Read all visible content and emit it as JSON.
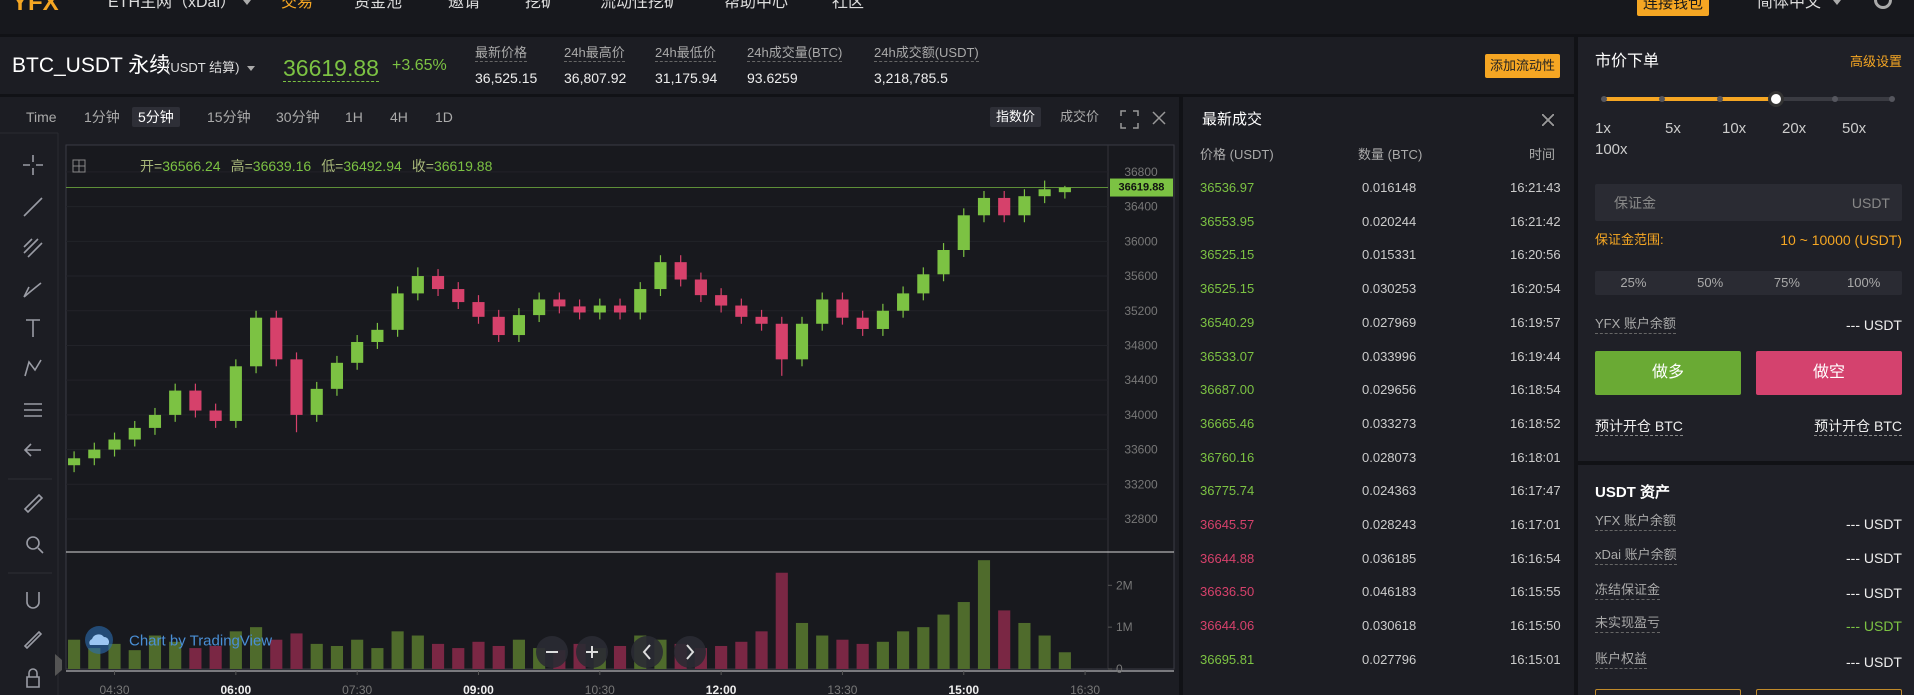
{
  "nav": {
    "logo": "YFX",
    "network": "ETH主网（xDai）",
    "items": [
      "交易",
      "资金池",
      "邀请",
      "挖矿",
      "流动性挖矿",
      "帮助中心",
      "社区"
    ],
    "active": 0,
    "connect_wallet": "连接钱包",
    "language": "简体中文"
  },
  "ticker": {
    "symbol": "BTC_USDT 永续",
    "settlement": "(USDT 结算)",
    "change": "+3.65%",
    "stats": [
      {
        "label": "最新价格",
        "value": "36,525.15"
      },
      {
        "label": "24h最高价",
        "value": "36,807.92"
      },
      {
        "label": "24h最低价",
        "value": "31,175.94"
      },
      {
        "label": "24h成交量(BTC)",
        "value": "93.6259"
      },
      {
        "label": "24h成交额(USDT)",
        "value": "3,218,785.5"
      }
    ],
    "add_liquidity": "添加流动性"
  },
  "toolbar": {
    "intervals": [
      "Time",
      "1分钟",
      "5分钟",
      "15分钟",
      "30分钟",
      "1H",
      "4H",
      "1D"
    ],
    "active_interval": 2,
    "price_types": [
      "指数价",
      "成交价"
    ],
    "active_price_type": 0
  },
  "chart_data": {
    "type": "candlestick",
    "x": [
      "04:00",
      "04:15",
      "04:30",
      "04:45",
      "05:00",
      "05:15",
      "05:30",
      "05:45",
      "06:00",
      "06:15",
      "06:30",
      "06:45",
      "07:00",
      "07:15",
      "07:30",
      "07:45",
      "08:00",
      "08:15",
      "08:30",
      "08:45",
      "09:00",
      "09:15",
      "09:30",
      "09:45",
      "10:00",
      "10:15",
      "10:30",
      "10:45",
      "11:00",
      "11:15",
      "11:30",
      "11:45",
      "12:00",
      "12:15",
      "12:30",
      "12:45",
      "13:00",
      "13:15",
      "13:30",
      "13:45",
      "14:00",
      "14:15",
      "14:30",
      "14:45",
      "15:00",
      "15:15",
      "15:30",
      "15:45",
      "16:00",
      "16:15"
    ],
    "open": [
      33420,
      33500,
      33600,
      33716,
      33850,
      34000,
      34280,
      34050,
      33930,
      34560,
      35120,
      34640,
      34000,
      34300,
      34600,
      34840,
      34980,
      35400,
      35600,
      35450,
      35300,
      35130,
      34920,
      35150,
      35330,
      35250,
      35180,
      35260,
      35180,
      35450,
      35760,
      35560,
      35380,
      35260,
      35130,
      35050,
      34640,
      35050,
      35330,
      35120,
      34990,
      35200,
      35400,
      35620,
      35900,
      36300,
      36500,
      36300,
      36520,
      36566.24
    ],
    "high": [
      33580,
      33680,
      33796,
      33930,
      34080,
      34360,
      34360,
      34130,
      34640,
      35200,
      35200,
      34720,
      34380,
      34680,
      34920,
      35060,
      35480,
      35700,
      35680,
      35530,
      35380,
      35210,
      35230,
      35410,
      35410,
      35330,
      35340,
      35340,
      35530,
      35840,
      35840,
      35640,
      35460,
      35340,
      35210,
      35130,
      35130,
      35410,
      35410,
      35200,
      35280,
      35480,
      35700,
      35980,
      36380,
      36580,
      36580,
      36600,
      36700,
      36639.16
    ],
    "low": [
      33340,
      33420,
      33520,
      33636,
      33770,
      33920,
      33970,
      33850,
      33850,
      34480,
      34560,
      33800,
      33920,
      34220,
      34520,
      34760,
      34900,
      35320,
      35370,
      35220,
      35050,
      34840,
      34840,
      35070,
      35170,
      35100,
      35100,
      35100,
      35100,
      35370,
      35480,
      35300,
      35180,
      35050,
      34970,
      34450,
      34560,
      34970,
      35040,
      34910,
      34910,
      35120,
      35320,
      35540,
      35820,
      36220,
      36220,
      36220,
      36440,
      36492.94
    ],
    "close": [
      33500,
      33600,
      33716,
      33850,
      34000,
      34280,
      34050,
      33930,
      34560,
      35120,
      34640,
      34000,
      34300,
      34600,
      34840,
      34980,
      35400,
      35600,
      35450,
      35300,
      35130,
      34920,
      35150,
      35330,
      35250,
      35180,
      35260,
      35180,
      35450,
      35760,
      35560,
      35380,
      35260,
      35130,
      35050,
      34640,
      35050,
      35330,
      35120,
      34990,
      35200,
      35400,
      35620,
      35900,
      36300,
      36500,
      36300,
      36520,
      36600,
      36619.88
    ],
    "volume": [
      700000,
      500000,
      600000,
      450000,
      800000,
      650000,
      500000,
      550000,
      900000,
      1000000,
      700000,
      850000,
      600000,
      550000,
      700000,
      500000,
      900000,
      800000,
      600000,
      500000,
      650000,
      550000,
      700000,
      500000,
      450000,
      600000,
      500000,
      550000,
      800000,
      700000,
      600000,
      500000,
      550000,
      650000,
      900000,
      2300000,
      1100000,
      800000,
      700000,
      600000,
      650000,
      900000,
      1000000,
      1300000,
      1600000,
      2600000,
      1400000,
      1100000,
      800000,
      400000
    ],
    "xlim": [
      "03:54",
      "16:47"
    ],
    "xticks": [
      "04:30",
      "06:00",
      "07:30",
      "09:00",
      "10:30",
      "12:00",
      "13:30",
      "15:00",
      "16:30"
    ],
    "ylim": [
      32420,
      37110
    ],
    "yticks": [
      32800,
      33200,
      33600,
      34000,
      34400,
      34800,
      35200,
      35600,
      36000,
      36400,
      36800
    ],
    "volume_ylim": [
      0,
      2700000
    ],
    "volume_ticks": [
      0,
      {
        "value": 1000000,
        "label": "1M"
      },
      {
        "value": 2000000,
        "label": "2M"
      }
    ],
    "ohlc_labels": [
      "开=",
      "高=",
      "低=",
      "收="
    ],
    "up_color": "#7cc243",
    "down_color": "#d6416b",
    "volume_up_color": "#4f6b2c",
    "volume_down_color": "#7a2744",
    "grid": true,
    "watermark": "Chart by TradingView"
  },
  "trades": {
    "title": "最新成交",
    "columns": [
      "价格 (USDT)",
      "数量 (BTC)",
      "时间"
    ],
    "rows": [
      {
        "price": "36536.97",
        "amount": "0.016148",
        "time": "16:21:43",
        "side": "buy"
      },
      {
        "price": "36553.95",
        "amount": "0.020244",
        "time": "16:21:42",
        "side": "buy"
      },
      {
        "price": "36525.15",
        "amount": "0.015331",
        "time": "16:20:56",
        "side": "buy"
      },
      {
        "price": "36525.15",
        "amount": "0.030253",
        "time": "16:20:54",
        "side": "buy"
      },
      {
        "price": "36540.29",
        "amount": "0.027969",
        "time": "16:19:57",
        "side": "buy"
      },
      {
        "price": "36533.07",
        "amount": "0.033996",
        "time": "16:19:44",
        "side": "buy"
      },
      {
        "price": "36687.00",
        "amount": "0.029656",
        "time": "16:18:54",
        "side": "buy"
      },
      {
        "price": "36665.46",
        "amount": "0.033273",
        "time": "16:18:52",
        "side": "buy"
      },
      {
        "price": "36760.16",
        "amount": "0.028073",
        "time": "16:18:01",
        "side": "buy"
      },
      {
        "price": "36775.74",
        "amount": "0.024363",
        "time": "16:17:47",
        "side": "buy"
      },
      {
        "price": "36645.57",
        "amount": "0.028243",
        "time": "16:17:01",
        "side": "sell"
      },
      {
        "price": "36644.88",
        "amount": "0.036185",
        "time": "16:16:54",
        "side": "sell"
      },
      {
        "price": "36636.50",
        "amount": "0.046183",
        "time": "16:15:55",
        "side": "sell"
      },
      {
        "price": "36644.06",
        "amount": "0.030618",
        "time": "16:15:50",
        "side": "sell"
      },
      {
        "price": "36695.81",
        "amount": "0.027796",
        "time": "16:15:01",
        "side": "buy"
      }
    ]
  },
  "order": {
    "title": "市价下单",
    "advanced": "高级设置",
    "leverage": [
      "1x",
      "5x",
      "10x",
      "20x",
      "50x",
      "100x"
    ],
    "leverage_selected": 3,
    "margin_placeholder": "保证金",
    "margin_unit": "USDT",
    "margin_range_label": "保证金范围:",
    "margin_range": "10 ~ 10000 (USDT)",
    "percents": [
      "25%",
      "50%",
      "75%",
      "100%"
    ],
    "balance": {
      "label": "YFX 账户余额",
      "value": "--- USDT"
    },
    "long": "做多",
    "short": "做空",
    "estimate_long": "预计开仓 BTC",
    "estimate_short": "预计开仓 BTC",
    "assets_title": "USDT 资产",
    "assets": [
      {
        "label": "YFX 账户余额",
        "value": "--- USDT"
      },
      {
        "label": "xDai 账户余额",
        "value": "--- USDT"
      },
      {
        "label": "冻结保证金",
        "value": "--- USDT"
      },
      {
        "label": "未实现盈亏",
        "value": "--- USDT",
        "color": "#7cc243"
      },
      {
        "label": "账户权益",
        "value": "--- USDT"
      }
    ]
  }
}
